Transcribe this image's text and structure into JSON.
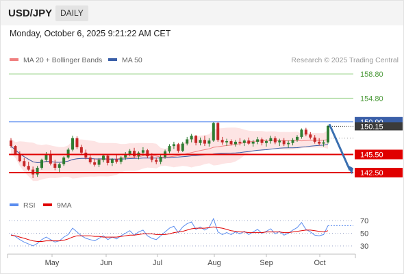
{
  "header": {
    "symbol": "USD/JPY",
    "timeframe_label": "DAILY"
  },
  "datetime": "Monday, October 6, 2025 9:21:22 AM CET",
  "colors": {
    "price_up": "#2e7d32",
    "price_down": "#c62828",
    "bollinger_fill": "#fde4e4",
    "ma20": "#f08080",
    "ma50": "#3a5fa8",
    "resistance_line": "#5b8def",
    "support_line": "#e00000",
    "target_line": "#9ad38a",
    "arrow": "#3a6fb0",
    "rsi": "#5b8def",
    "rsi_ma": "#e00000"
  },
  "chart_data": [
    {
      "type": "candlestick",
      "title": "",
      "y_range": [
        140.0,
        160.0
      ],
      "x_months": [
        "May",
        "Jun",
        "Jul",
        "Aug",
        "Sep",
        "Oct"
      ],
      "legend": [
        {
          "label": "MA 20 + Bollinger Bands",
          "color": "#f08080"
        },
        {
          "label": "MA 50",
          "color": "#3a5fa8"
        }
      ],
      "legend_placement": "top-left",
      "watermark": "Research © 2025 Trading Central",
      "current_price": "150.15",
      "levels": [
        {
          "value": 158.8,
          "label": "158.80",
          "kind": "target"
        },
        {
          "value": 154.8,
          "label": "154.80",
          "kind": "target"
        },
        {
          "value": 150.9,
          "label": "150.90",
          "kind": "pivot"
        },
        {
          "value": 145.5,
          "label": "145.50",
          "kind": "support"
        },
        {
          "value": 142.5,
          "label": "142.50",
          "kind": "support"
        }
      ],
      "candles_approx": [
        [
          147.8,
          148.2,
          146.6,
          146.9
        ],
        [
          146.9,
          147.0,
          145.4,
          145.6
        ],
        [
          145.6,
          146.0,
          144.2,
          144.4
        ],
        [
          144.4,
          144.9,
          143.4,
          143.6
        ],
        [
          143.6,
          144.3,
          142.8,
          143.0
        ],
        [
          143.0,
          143.5,
          141.6,
          142.2
        ],
        [
          142.2,
          143.6,
          141.8,
          143.3
        ],
        [
          143.3,
          144.8,
          143.0,
          144.6
        ],
        [
          144.6,
          145.9,
          144.3,
          145.6
        ],
        [
          145.6,
          146.2,
          143.7,
          144.0
        ],
        [
          144.0,
          144.6,
          142.9,
          143.3
        ],
        [
          143.3,
          144.1,
          142.6,
          143.9
        ],
        [
          143.9,
          145.2,
          143.6,
          145.0
        ],
        [
          145.0,
          146.6,
          144.8,
          146.3
        ],
        [
          146.3,
          148.6,
          146.0,
          148.2
        ],
        [
          148.2,
          148.5,
          146.4,
          146.7
        ],
        [
          146.7,
          147.1,
          145.6,
          145.8
        ],
        [
          145.8,
          146.3,
          144.7,
          145.0
        ],
        [
          145.0,
          145.4,
          143.9,
          144.2
        ],
        [
          144.2,
          144.8,
          143.5,
          143.8
        ],
        [
          143.8,
          144.9,
          143.4,
          144.6
        ],
        [
          144.6,
          145.6,
          144.2,
          145.3
        ],
        [
          145.3,
          145.5,
          143.7,
          144.1
        ],
        [
          144.1,
          144.9,
          143.6,
          144.7
        ],
        [
          144.7,
          145.5,
          144.0,
          144.3
        ],
        [
          144.3,
          145.2,
          143.9,
          145.0
        ],
        [
          145.0,
          145.9,
          144.6,
          145.6
        ],
        [
          145.6,
          146.4,
          145.2,
          146.1
        ],
        [
          146.1,
          146.6,
          144.9,
          145.2
        ],
        [
          145.2,
          146.0,
          144.7,
          145.8
        ],
        [
          145.8,
          146.7,
          145.3,
          146.2
        ],
        [
          146.2,
          146.4,
          144.9,
          145.2
        ],
        [
          145.2,
          145.7,
          144.2,
          144.6
        ],
        [
          144.6,
          145.0,
          143.9,
          144.3
        ],
        [
          144.3,
          145.4,
          143.9,
          145.1
        ],
        [
          145.1,
          146.3,
          144.8,
          146.0
        ],
        [
          146.0,
          147.2,
          145.7,
          146.9
        ],
        [
          146.9,
          147.6,
          146.4,
          147.2
        ],
        [
          147.2,
          147.4,
          145.8,
          146.1
        ],
        [
          146.1,
          147.6,
          145.9,
          147.3
        ],
        [
          147.3,
          148.4,
          147.0,
          148.0
        ],
        [
          148.0,
          148.9,
          147.5,
          148.6
        ],
        [
          148.6,
          148.7,
          147.0,
          147.4
        ],
        [
          147.4,
          148.3,
          147.0,
          147.9
        ],
        [
          147.9,
          148.6,
          146.9,
          147.3
        ],
        [
          147.3,
          148.2,
          146.8,
          147.8
        ],
        [
          147.8,
          150.9,
          147.6,
          150.7
        ],
        [
          150.7,
          150.9,
          147.6,
          147.9
        ],
        [
          147.9,
          148.4,
          147.1,
          147.5
        ],
        [
          147.5,
          148.1,
          146.9,
          147.7
        ],
        [
          147.7,
          148.0,
          147.0,
          147.2
        ],
        [
          147.2,
          147.9,
          146.8,
          147.6
        ],
        [
          147.6,
          148.2,
          147.0,
          147.4
        ],
        [
          147.4,
          148.0,
          146.9,
          147.8
        ],
        [
          147.8,
          148.3,
          147.1,
          147.3
        ],
        [
          147.3,
          147.9,
          146.8,
          147.6
        ],
        [
          147.6,
          148.4,
          147.2,
          148.0
        ],
        [
          148.0,
          148.3,
          147.0,
          147.4
        ],
        [
          147.4,
          148.0,
          146.8,
          147.7
        ],
        [
          147.7,
          148.6,
          147.3,
          148.2
        ],
        [
          148.2,
          148.5,
          147.2,
          147.5
        ],
        [
          147.5,
          148.1,
          146.9,
          147.8
        ],
        [
          147.8,
          148.2,
          146.9,
          147.2
        ],
        [
          147.2,
          147.8,
          146.6,
          147.4
        ],
        [
          147.4,
          148.2,
          147.0,
          147.9
        ],
        [
          147.9,
          148.7,
          147.6,
          148.4
        ],
        [
          148.4,
          149.8,
          148.1,
          149.6
        ],
        [
          149.6,
          149.9,
          148.5,
          148.8
        ],
        [
          148.8,
          149.2,
          148.0,
          148.3
        ],
        [
          148.3,
          148.7,
          147.3,
          147.6
        ],
        [
          147.6,
          148.2,
          147.0,
          147.3
        ],
        [
          147.3,
          147.9,
          146.8,
          147.5
        ],
        [
          147.5,
          150.4,
          147.3,
          150.2
        ]
      ]
    },
    {
      "type": "line",
      "title": "",
      "y_range": [
        20,
        80
      ],
      "y_ticks": [
        70,
        50,
        30
      ],
      "legend": [
        {
          "label": "RSI",
          "color": "#5b8def"
        },
        {
          "label": "9MA",
          "color": "#e00000"
        }
      ],
      "legend_placement": "top-left",
      "series": [
        {
          "name": "RSI",
          "values_approx": [
            48,
            45,
            40,
            36,
            33,
            30,
            34,
            40,
            44,
            40,
            36,
            38,
            44,
            48,
            58,
            52,
            46,
            42,
            40,
            38,
            42,
            46,
            40,
            44,
            41,
            46,
            50,
            54,
            47,
            52,
            55,
            46,
            42,
            40,
            46,
            52,
            58,
            61,
            51,
            60,
            65,
            68,
            56,
            60,
            55,
            59,
            73,
            52,
            48,
            51,
            48,
            52,
            49,
            53,
            48,
            52,
            56,
            50,
            53,
            57,
            49,
            53,
            47,
            50,
            55,
            59,
            67,
            56,
            52,
            47,
            46,
            48,
            62
          ]
        },
        {
          "name": "9MA",
          "values_approx": [
            47,
            46,
            44,
            42,
            40,
            38,
            37,
            37,
            38,
            38,
            38,
            38,
            39,
            41,
            44,
            46,
            46,
            46,
            46,
            45,
            45,
            44,
            44,
            44,
            44,
            45,
            46,
            47,
            47,
            48,
            49,
            49,
            49,
            48,
            48,
            48,
            49,
            51,
            52,
            53,
            55,
            57,
            58,
            58,
            58,
            59,
            60,
            59,
            58,
            56,
            54,
            53,
            52,
            52,
            51,
            51,
            51,
            51,
            52,
            52,
            52,
            52,
            51,
            51,
            52,
            53,
            54,
            55,
            55,
            54,
            53,
            52,
            54
          ]
        }
      ]
    }
  ]
}
